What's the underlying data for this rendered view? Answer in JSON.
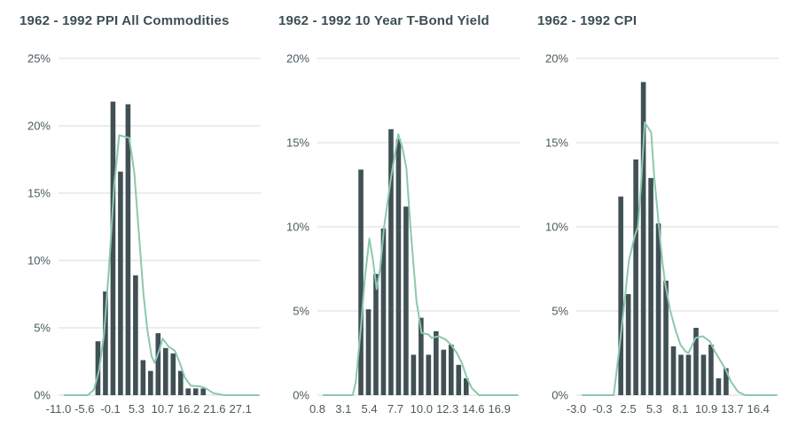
{
  "colors": {
    "bar": "#405055",
    "curve": "#8cc8ad",
    "gridline": "#dbdbdb",
    "axis_text": "#4a5a5e",
    "title_text": "#3d4e54",
    "background": "#ffffff"
  },
  "chart_data": [
    {
      "type": "bar",
      "subtype": "histogram-with-density-curve",
      "title": "1962 - 1992 PPI All Commodities",
      "ylim": [
        0,
        25
      ],
      "ytick_step": 5,
      "ytick_labels": [
        "0%",
        "5%",
        "10%",
        "15%",
        "20%",
        "25%"
      ],
      "xtick_labels": [
        "-11.0",
        "-5.6",
        "-0.1",
        "5.3",
        "10.7",
        "16.2",
        "21.6",
        "27.1"
      ],
      "grid": "horizontal",
      "legend": "none",
      "bar_values": [
        4.0,
        7.7,
        21.8,
        16.6,
        21.6,
        8.9,
        2.6,
        1.8,
        4.6,
        3.5,
        3.1,
        1.8,
        0.5,
        0.5,
        0.5
      ],
      "bar_start_frac": 0.195,
      "bar_step_frac": 0.0372,
      "curve_points": [
        [
          0.03,
          0
        ],
        [
          0.145,
          0
        ],
        [
          0.175,
          0.4
        ],
        [
          0.2,
          1.8
        ],
        [
          0.225,
          4.5
        ],
        [
          0.25,
          9.5
        ],
        [
          0.275,
          15.5
        ],
        [
          0.3,
          19.3
        ],
        [
          0.35,
          19.1
        ],
        [
          0.375,
          16.5
        ],
        [
          0.4,
          11.5
        ],
        [
          0.42,
          7.5
        ],
        [
          0.44,
          4.8
        ],
        [
          0.46,
          2.9
        ],
        [
          0.475,
          2.4
        ],
        [
          0.5,
          3.4
        ],
        [
          0.515,
          4.2
        ],
        [
          0.545,
          3.6
        ],
        [
          0.575,
          3.3
        ],
        [
          0.6,
          2.4
        ],
        [
          0.625,
          1.3
        ],
        [
          0.655,
          0.7
        ],
        [
          0.7,
          0.65
        ],
        [
          0.73,
          0.5
        ],
        [
          0.765,
          0.15
        ],
        [
          0.82,
          0
        ],
        [
          0.99,
          0
        ]
      ]
    },
    {
      "type": "bar",
      "subtype": "histogram-with-density-curve",
      "title": "1962 - 1992 10 Year T-Bond Yield",
      "ylim": [
        0,
        20
      ],
      "ytick_step": 5,
      "ytick_labels": [
        "0%",
        "5%",
        "10%",
        "15%",
        "20%"
      ],
      "xtick_labels": [
        "0.8",
        "3.1",
        "5.4",
        "7.7",
        "10.0",
        "12.3",
        "14.6",
        "16.9"
      ],
      "grid": "horizontal",
      "legend": "none",
      "bar_values": [
        13.4,
        5.1,
        7.2,
        9.9,
        15.8,
        15.2,
        11.2,
        2.4,
        4.6,
        2.4,
        3.8,
        2.7,
        3.0,
        1.8,
        1.0
      ],
      "bar_start_frac": 0.215,
      "bar_step_frac": 0.0372,
      "curve_points": [
        [
          0.03,
          0
        ],
        [
          0.175,
          0
        ],
        [
          0.19,
          0.8
        ],
        [
          0.215,
          4.0
        ],
        [
          0.235,
          7.0
        ],
        [
          0.257,
          9.3
        ],
        [
          0.275,
          8.0
        ],
        [
          0.293,
          6.3
        ],
        [
          0.31,
          7.5
        ],
        [
          0.33,
          10.0
        ],
        [
          0.365,
          13.0
        ],
        [
          0.4,
          15.5
        ],
        [
          0.42,
          14.7
        ],
        [
          0.44,
          13.5
        ],
        [
          0.46,
          10.0
        ],
        [
          0.49,
          5.6
        ],
        [
          0.515,
          3.7
        ],
        [
          0.55,
          3.6
        ],
        [
          0.565,
          3.4
        ],
        [
          0.6,
          3.5
        ],
        [
          0.635,
          3.3
        ],
        [
          0.66,
          3.0
        ],
        [
          0.69,
          2.5
        ],
        [
          0.715,
          1.9
        ],
        [
          0.74,
          1.0
        ],
        [
          0.765,
          0.4
        ],
        [
          0.8,
          0
        ],
        [
          0.99,
          0
        ]
      ]
    },
    {
      "type": "bar",
      "subtype": "histogram-with-density-curve",
      "title": "1962 - 1992 CPI",
      "ylim": [
        0,
        20
      ],
      "ytick_step": 5,
      "ytick_labels": [
        "0%",
        "5%",
        "10%",
        "15%",
        "20%"
      ],
      "xtick_labels": [
        "-3.0",
        "-0.3",
        "2.5",
        "5.3",
        "8.1",
        "10.9",
        "13.7",
        "16.4"
      ],
      "grid": "horizontal",
      "legend": "none",
      "bar_values": [
        11.8,
        6.0,
        14.0,
        18.6,
        12.9,
        10.2,
        6.8,
        2.9,
        2.4,
        2.4,
        4.0,
        2.4,
        3.0,
        1.0,
        1.6
      ],
      "bar_start_frac": 0.22,
      "bar_step_frac": 0.0372,
      "curve_points": [
        [
          0.03,
          0
        ],
        [
          0.185,
          0
        ],
        [
          0.21,
          2.5
        ],
        [
          0.235,
          5.2
        ],
        [
          0.26,
          8.0
        ],
        [
          0.29,
          9.5
        ],
        [
          0.305,
          10.0
        ],
        [
          0.32,
          12.5
        ],
        [
          0.338,
          16.2
        ],
        [
          0.355,
          15.9
        ],
        [
          0.37,
          15.6
        ],
        [
          0.385,
          13.0
        ],
        [
          0.405,
          10.5
        ],
        [
          0.425,
          8.0
        ],
        [
          0.44,
          6.6
        ],
        [
          0.465,
          5.0
        ],
        [
          0.49,
          3.9
        ],
        [
          0.515,
          3.0
        ],
        [
          0.54,
          2.6
        ],
        [
          0.555,
          2.5
        ],
        [
          0.59,
          3.4
        ],
        [
          0.625,
          3.5
        ],
        [
          0.66,
          3.2
        ],
        [
          0.685,
          2.6
        ],
        [
          0.715,
          2.0
        ],
        [
          0.74,
          1.5
        ],
        [
          0.765,
          0.8
        ],
        [
          0.8,
          0.2
        ],
        [
          0.835,
          0
        ],
        [
          0.99,
          0
        ]
      ]
    }
  ]
}
